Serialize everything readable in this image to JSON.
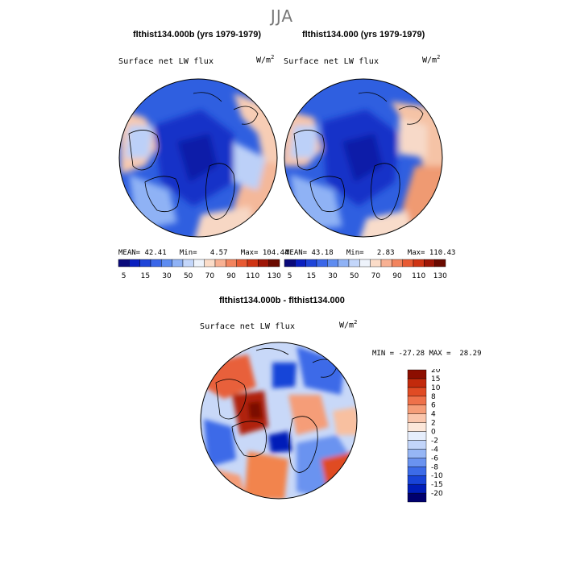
{
  "figure": {
    "title": "JJA"
  },
  "left_panel": {
    "title": "flthist134.000b (yrs 1979-1979)",
    "variable": "Surface net LW flux",
    "units": "W/m",
    "units_exp": "2",
    "stats": {
      "mean_label": "MEAN=",
      "mean": "42.41",
      "min_label": "Min=",
      "min": "4.57",
      "max_label": "Max=",
      "max": "104.44"
    }
  },
  "right_panel": {
    "title": "flthist134.000 (yrs 1979-1979)",
    "variable": "Surface net LW flux",
    "units": "W/m",
    "units_exp": "2",
    "stats": {
      "mean_label": "MEAN=",
      "mean": "43.18",
      "min_label": "Min=",
      "min": "2.83",
      "max_label": "Max=",
      "max": "110.43"
    }
  },
  "diff_panel": {
    "title": "flthist134.000b - flthist134.000",
    "variable": "Surface net LW flux",
    "units": "W/m",
    "units_exp": "2",
    "stats": {
      "min_label": "MIN =",
      "min": "-27.28",
      "max_label": "MAX =",
      "max": "28.29"
    }
  },
  "colorbar_top": {
    "colors": [
      "#0a0a7a",
      "#0a1fbf",
      "#1e44d8",
      "#3a66e8",
      "#5e8cf0",
      "#8fb2f5",
      "#c3d6fa",
      "#eef3fb",
      "#fbdcc8",
      "#f8b193",
      "#f2845e",
      "#e85a33",
      "#cf3414",
      "#9e1606",
      "#6a0a00"
    ],
    "labels": [
      "5",
      "15",
      "30",
      "50",
      "70",
      "90",
      "110",
      "130"
    ]
  },
  "colorbar_diff": {
    "colors": [
      "#00006e",
      "#001db8",
      "#1844d8",
      "#3c6be8",
      "#6a93f0",
      "#96b6f5",
      "#c2d5fa",
      "#e6eefc",
      "#fce7d9",
      "#fac6ac",
      "#f59d78",
      "#ee714a",
      "#e04b24",
      "#c22a0c",
      "#8c0e00"
    ],
    "labels": [
      "-20",
      "-15",
      "-10",
      "-8",
      "-6",
      "-4",
      "-2",
      "0",
      "2",
      "4",
      "6",
      "8",
      "10",
      "15",
      "20"
    ]
  }
}
